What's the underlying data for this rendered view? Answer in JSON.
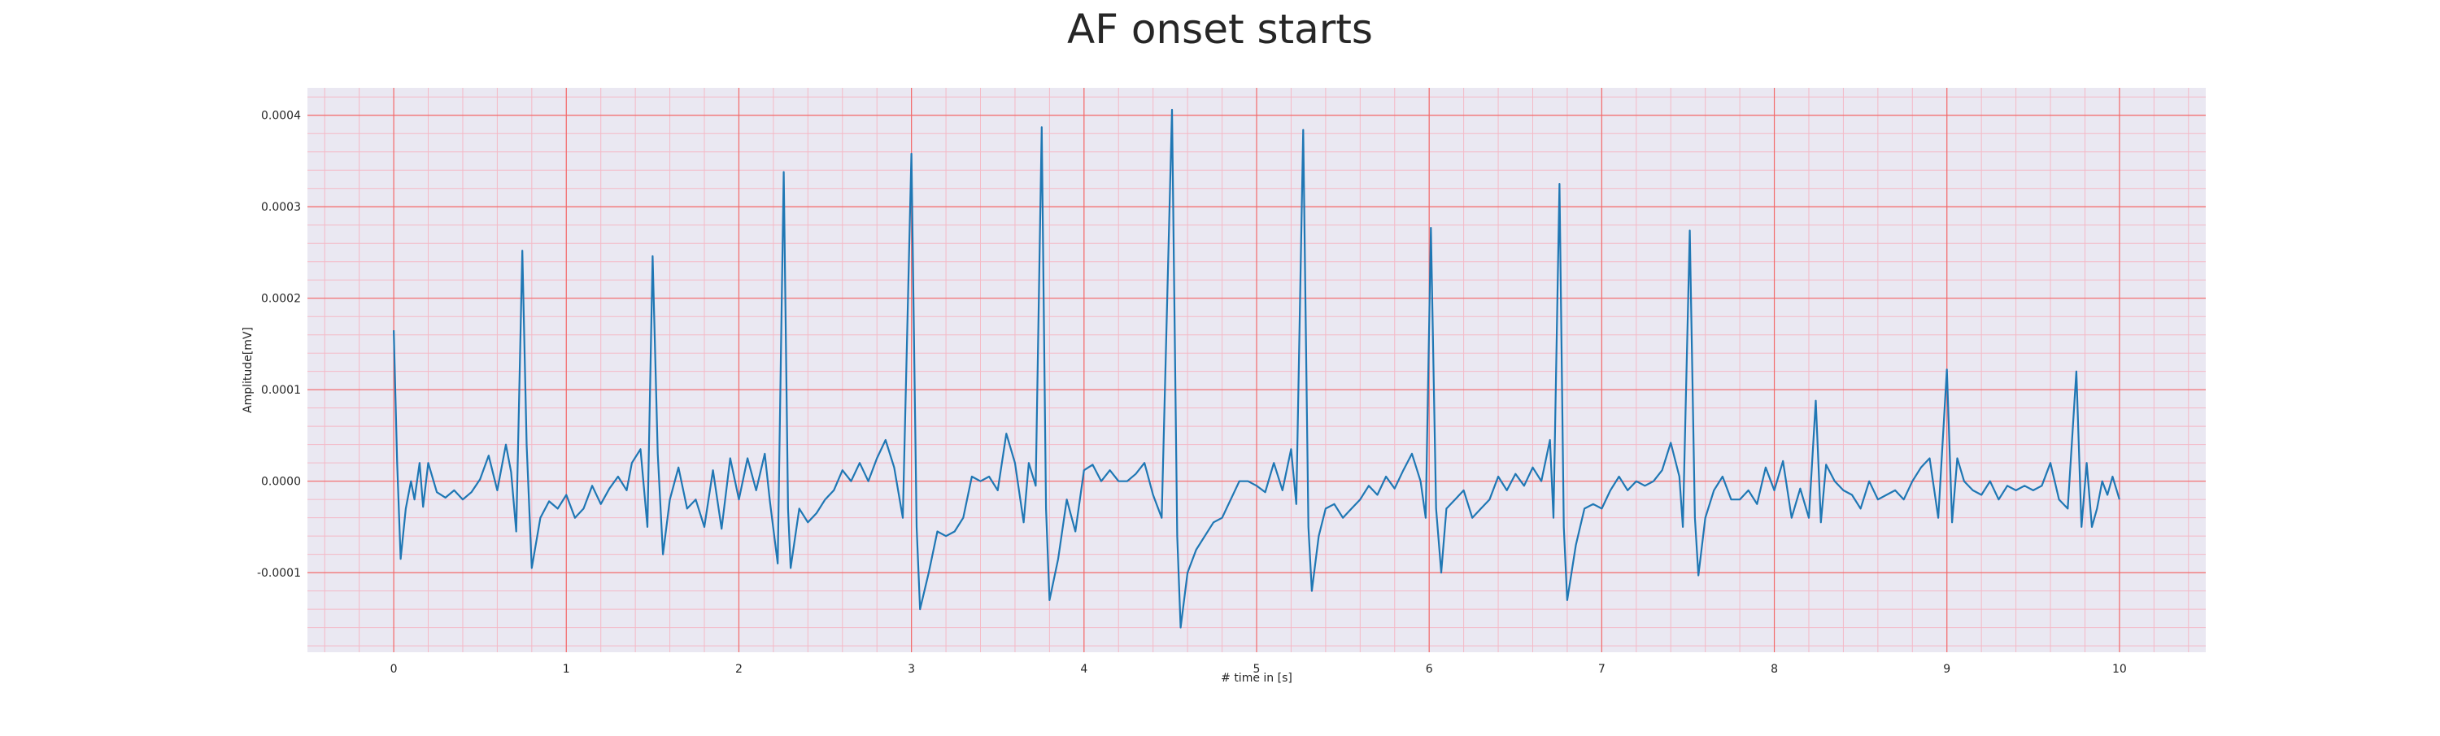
{
  "chart_data": {
    "type": "line",
    "title": "AF onset starts",
    "xlabel": "# time in [s]",
    "ylabel": "Amplitude[mV]",
    "xlim": [
      -0.5,
      10.5
    ],
    "ylim": [
      -0.000187,
      0.00043
    ],
    "xticks": [
      0,
      1,
      2,
      3,
      4,
      5,
      6,
      7,
      8,
      9,
      10
    ],
    "xtick_labels": [
      "0",
      "1",
      "2",
      "3",
      "4",
      "5",
      "6",
      "7",
      "8",
      "9",
      "10"
    ],
    "yticks": [
      -0.0001,
      0.0,
      0.0001,
      0.0002,
      0.0003,
      0.0004
    ],
    "ytick_labels": [
      "-0.0001",
      "0.0000",
      "0.0001",
      "0.0002",
      "0.0003",
      "0.0004"
    ],
    "grid": true,
    "grid_major_color": "#f26b6b",
    "grid_minor_color": "#f4b9c6",
    "plot_background": "#eae8f2",
    "series": [
      {
        "color": "#1f77b4",
        "points": [
          [
            0.0,
            0.000165
          ],
          [
            0.02,
            2e-05
          ],
          [
            0.04,
            -8.5e-05
          ],
          [
            0.07,
            -3e-05
          ],
          [
            0.1,
            0.0
          ],
          [
            0.12,
            -2e-05
          ],
          [
            0.15,
            2e-05
          ],
          [
            0.17,
            -2.8e-05
          ],
          [
            0.2,
            2e-05
          ],
          [
            0.25,
            -1.2e-05
          ],
          [
            0.3,
            -1.8e-05
          ],
          [
            0.35,
            -1e-05
          ],
          [
            0.4,
            -2e-05
          ],
          [
            0.45,
            -1.2e-05
          ],
          [
            0.5,
            2e-06
          ],
          [
            0.55,
            2.8e-05
          ],
          [
            0.6,
            -1e-05
          ],
          [
            0.65,
            4e-05
          ],
          [
            0.68,
            1e-05
          ],
          [
            0.71,
            -5.5e-05
          ],
          [
            0.745,
            0.000252
          ],
          [
            0.77,
            4e-05
          ],
          [
            0.8,
            -9.5e-05
          ],
          [
            0.85,
            -4e-05
          ],
          [
            0.9,
            -2.2e-05
          ],
          [
            0.95,
            -3e-05
          ],
          [
            1.0,
            -1.5e-05
          ],
          [
            1.05,
            -4e-05
          ],
          [
            1.1,
            -3e-05
          ],
          [
            1.15,
            -5e-06
          ],
          [
            1.2,
            -2.5e-05
          ],
          [
            1.25,
            -8e-06
          ],
          [
            1.3,
            5e-06
          ],
          [
            1.35,
            -1e-05
          ],
          [
            1.38,
            2e-05
          ],
          [
            1.43,
            3.5e-05
          ],
          [
            1.47,
            -5e-05
          ],
          [
            1.5,
            0.000246
          ],
          [
            1.53,
            3e-05
          ],
          [
            1.56,
            -8e-05
          ],
          [
            1.6,
            -2e-05
          ],
          [
            1.65,
            1.5e-05
          ],
          [
            1.7,
            -3e-05
          ],
          [
            1.75,
            -2e-05
          ],
          [
            1.8,
            -5e-05
          ],
          [
            1.85,
            1.2e-05
          ],
          [
            1.9,
            -5.2e-05
          ],
          [
            1.95,
            2.5e-05
          ],
          [
            2.0,
            -2e-05
          ],
          [
            2.05,
            2.5e-05
          ],
          [
            2.1,
            -1e-05
          ],
          [
            2.15,
            3e-05
          ],
          [
            2.18,
            -2.2e-05
          ],
          [
            2.225,
            -9e-05
          ],
          [
            2.26,
            0.000338
          ],
          [
            2.285,
            -3e-05
          ],
          [
            2.3,
            -9.5e-05
          ],
          [
            2.35,
            -3e-05
          ],
          [
            2.4,
            -4.5e-05
          ],
          [
            2.45,
            -3.5e-05
          ],
          [
            2.5,
            -2e-05
          ],
          [
            2.55,
            -1e-05
          ],
          [
            2.6,
            1.2e-05
          ],
          [
            2.65,
            0.0
          ],
          [
            2.7,
            2e-05
          ],
          [
            2.75,
            0.0
          ],
          [
            2.8,
            2.5e-05
          ],
          [
            2.85,
            4.5e-05
          ],
          [
            2.9,
            1.5e-05
          ],
          [
            2.95,
            -4e-05
          ],
          [
            3.0,
            0.000358
          ],
          [
            3.03,
            -5e-05
          ],
          [
            3.05,
            -0.00014
          ],
          [
            3.1,
            -0.0001
          ],
          [
            3.15,
            -5.5e-05
          ],
          [
            3.2,
            -6e-05
          ],
          [
            3.25,
            -5.5e-05
          ],
          [
            3.3,
            -4e-05
          ],
          [
            3.35,
            5e-06
          ],
          [
            3.4,
            0.0
          ],
          [
            3.45,
            5e-06
          ],
          [
            3.5,
            -1e-05
          ],
          [
            3.55,
            5.2e-05
          ],
          [
            3.6,
            2e-05
          ],
          [
            3.65,
            -4.5e-05
          ],
          [
            3.68,
            2e-05
          ],
          [
            3.72,
            -5e-06
          ],
          [
            3.755,
            0.000387
          ],
          [
            3.78,
            -3e-05
          ],
          [
            3.8,
            -0.00013
          ],
          [
            3.85,
            -8.5e-05
          ],
          [
            3.9,
            -2e-05
          ],
          [
            3.95,
            -5.5e-05
          ],
          [
            4.0,
            1.2e-05
          ],
          [
            4.05,
            1.8e-05
          ],
          [
            4.1,
            0.0
          ],
          [
            4.15,
            1.2e-05
          ],
          [
            4.2,
            0.0
          ],
          [
            4.25,
            0.0
          ],
          [
            4.3,
            8e-06
          ],
          [
            4.35,
            2e-05
          ],
          [
            4.4,
            -1.5e-05
          ],
          [
            4.45,
            -4e-05
          ],
          [
            4.51,
            0.000406
          ],
          [
            4.54,
            -6e-05
          ],
          [
            4.56,
            -0.00016
          ],
          [
            4.6,
            -0.0001
          ],
          [
            4.65,
            -7.5e-05
          ],
          [
            4.7,
            -6e-05
          ],
          [
            4.75,
            -4.5e-05
          ],
          [
            4.8,
            -4e-05
          ],
          [
            4.85,
            -2e-05
          ],
          [
            4.9,
            0.0
          ],
          [
            4.95,
            0.0
          ],
          [
            5.0,
            -5e-06
          ],
          [
            5.05,
            -1.2e-05
          ],
          [
            5.1,
            2e-05
          ],
          [
            5.15,
            -1e-05
          ],
          [
            5.2,
            3.5e-05
          ],
          [
            5.23,
            -2.5e-05
          ],
          [
            5.27,
            0.000384
          ],
          [
            5.3,
            -5e-05
          ],
          [
            5.32,
            -0.00012
          ],
          [
            5.36,
            -6e-05
          ],
          [
            5.4,
            -3e-05
          ],
          [
            5.45,
            -2.5e-05
          ],
          [
            5.5,
            -4e-05
          ],
          [
            5.55,
            -3e-05
          ],
          [
            5.6,
            -2e-05
          ],
          [
            5.65,
            -5e-06
          ],
          [
            5.7,
            -1.5e-05
          ],
          [
            5.75,
            5e-06
          ],
          [
            5.8,
            -8e-06
          ],
          [
            5.85,
            1.2e-05
          ],
          [
            5.9,
            3e-05
          ],
          [
            5.95,
            0.0
          ],
          [
            5.98,
            -4e-05
          ],
          [
            6.01,
            0.000277
          ],
          [
            6.04,
            -3e-05
          ],
          [
            6.07,
            -0.0001
          ],
          [
            6.1,
            -3e-05
          ],
          [
            6.15,
            -2e-05
          ],
          [
            6.2,
            -1e-05
          ],
          [
            6.25,
            -4e-05
          ],
          [
            6.3,
            -3e-05
          ],
          [
            6.35,
            -2e-05
          ],
          [
            6.4,
            5e-06
          ],
          [
            6.45,
            -1e-05
          ],
          [
            6.5,
            8e-06
          ],
          [
            6.55,
            -5e-06
          ],
          [
            6.6,
            1.5e-05
          ],
          [
            6.65,
            0.0
          ],
          [
            6.7,
            4.5e-05
          ],
          [
            6.72,
            -4e-05
          ],
          [
            6.755,
            0.000325
          ],
          [
            6.78,
            -5e-05
          ],
          [
            6.8,
            -0.00013
          ],
          [
            6.85,
            -7e-05
          ],
          [
            6.9,
            -3e-05
          ],
          [
            6.95,
            -2.5e-05
          ],
          [
            7.0,
            -3e-05
          ],
          [
            7.05,
            -1e-05
          ],
          [
            7.1,
            5e-06
          ],
          [
            7.15,
            -1e-05
          ],
          [
            7.2,
            0.0
          ],
          [
            7.25,
            -5e-06
          ],
          [
            7.3,
            0.0
          ],
          [
            7.35,
            1.2e-05
          ],
          [
            7.4,
            4.2e-05
          ],
          [
            7.45,
            5e-06
          ],
          [
            7.47,
            -5e-05
          ],
          [
            7.51,
            0.000274
          ],
          [
            7.54,
            -4e-05
          ],
          [
            7.56,
            -0.000103
          ],
          [
            7.6,
            -4e-05
          ],
          [
            7.65,
            -1e-05
          ],
          [
            7.7,
            5e-06
          ],
          [
            7.75,
            -2e-05
          ],
          [
            7.8,
            -2e-05
          ],
          [
            7.85,
            -1e-05
          ],
          [
            7.9,
            -2.5e-05
          ],
          [
            7.95,
            1.5e-05
          ],
          [
            8.0,
            -1e-05
          ],
          [
            8.05,
            2.2e-05
          ],
          [
            8.1,
            -4e-05
          ],
          [
            8.15,
            -8e-06
          ],
          [
            8.2,
            -4e-05
          ],
          [
            8.24,
            8.8e-05
          ],
          [
            8.27,
            -4.5e-05
          ],
          [
            8.3,
            1.8e-05
          ],
          [
            8.35,
            0.0
          ],
          [
            8.4,
            -1e-05
          ],
          [
            8.45,
            -1.5e-05
          ],
          [
            8.5,
            -3e-05
          ],
          [
            8.55,
            0.0
          ],
          [
            8.6,
            -2e-05
          ],
          [
            8.65,
            -1.5e-05
          ],
          [
            8.7,
            -1e-05
          ],
          [
            8.75,
            -2e-05
          ],
          [
            8.8,
            0.0
          ],
          [
            8.85,
            1.5e-05
          ],
          [
            8.9,
            2.5e-05
          ],
          [
            8.95,
            -4e-05
          ],
          [
            9.0,
            0.000122
          ],
          [
            9.03,
            -4.5e-05
          ],
          [
            9.06,
            2.5e-05
          ],
          [
            9.1,
            0.0
          ],
          [
            9.15,
            -1e-05
          ],
          [
            9.2,
            -1.5e-05
          ],
          [
            9.25,
            0.0
          ],
          [
            9.3,
            -2e-05
          ],
          [
            9.35,
            -5e-06
          ],
          [
            9.4,
            -1e-05
          ],
          [
            9.45,
            -5e-06
          ],
          [
            9.5,
            -1e-05
          ],
          [
            9.55,
            -5e-06
          ],
          [
            9.6,
            2e-05
          ],
          [
            9.65,
            -2e-05
          ],
          [
            9.7,
            -3e-05
          ],
          [
            9.75,
            0.00012
          ],
          [
            9.78,
            -5e-05
          ],
          [
            9.81,
            2e-05
          ],
          [
            9.84,
            -5e-05
          ],
          [
            9.87,
            -3e-05
          ],
          [
            9.9,
            0.0
          ],
          [
            9.93,
            -1.5e-05
          ],
          [
            9.96,
            5e-06
          ],
          [
            10.0,
            -2e-05
          ]
        ]
      }
    ]
  }
}
